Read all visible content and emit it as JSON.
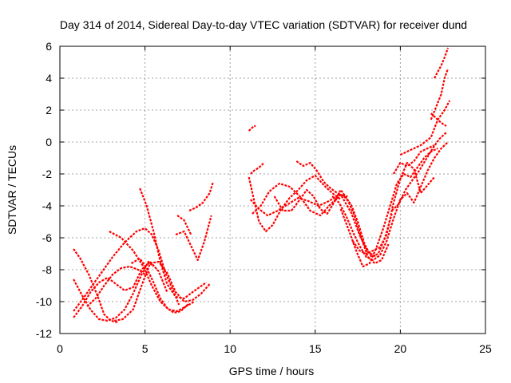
{
  "chart_data": {
    "type": "scatter",
    "title": "Day 314 of 2014, Sidereal Day-to-day VTEC variation (SDTVAR) for receiver dund",
    "xlabel": "GPS time / hours",
    "ylabel": "SDTVAR / TECUs",
    "xlim": [
      0,
      25
    ],
    "ylim": [
      -12,
      6
    ],
    "xticks": [
      "0",
      "5",
      "10",
      "15",
      "20",
      "25"
    ],
    "yticks": [
      "-12",
      "-10",
      "-8",
      "-6",
      "-4",
      "-2",
      "0",
      "2",
      "4",
      "6"
    ],
    "grid": true,
    "marker_color": "#ff0000",
    "marker": "plus",
    "series": [
      {
        "x": [
          0.8,
          1.2,
          1.7,
          2.2,
          2.6,
          3.0,
          3.4
        ],
        "y": [
          -6.7,
          -7.3,
          -8.3,
          -9.6,
          -10.8,
          -11.2,
          -11.3
        ]
      },
      {
        "x": [
          0.8,
          1.3,
          1.9,
          2.5,
          3.1,
          3.8,
          4.5,
          5.0,
          5.4,
          5.8,
          6.2,
          6.7,
          7.0
        ],
        "y": [
          -10.6,
          -9.9,
          -9.0,
          -8.1,
          -7.2,
          -6.3,
          -5.6,
          -5.4,
          -5.8,
          -6.8,
          -8.2,
          -9.4,
          -10.2
        ]
      },
      {
        "x": [
          0.8,
          1.3,
          1.8,
          2.3,
          2.8,
          3.3,
          3.8,
          4.3,
          4.8,
          5.3,
          5.8,
          6.3
        ],
        "y": [
          -11.0,
          -10.3,
          -9.4,
          -8.8,
          -8.5,
          -8.9,
          -9.3,
          -9.1,
          -8.0,
          -7.5,
          -8.1,
          -9.4
        ]
      },
      {
        "x": [
          0.8,
          1.3,
          1.8,
          2.3,
          2.8,
          3.3,
          3.8,
          4.3,
          4.8,
          5.2,
          5.5
        ],
        "y": [
          -8.6,
          -9.6,
          -10.5,
          -11.1,
          -11.2,
          -11.0,
          -10.5,
          -9.5,
          -8.3,
          -7.5,
          -7.8
        ]
      },
      {
        "x": [
          1.6,
          2.1,
          2.6,
          3.1,
          3.6,
          4.1,
          4.6,
          5.0
        ],
        "y": [
          -10.3,
          -9.8,
          -9.0,
          -8.3,
          -7.9,
          -7.8,
          -8.0,
          -8.3
        ]
      },
      {
        "x": [
          3.2,
          3.7,
          4.3,
          4.8,
          5.3,
          5.8,
          6.3,
          6.8,
          7.3,
          7.8,
          8.3,
          8.8
        ],
        "y": [
          -11.2,
          -11.1,
          -10.5,
          -9.0,
          -7.6,
          -7.5,
          -8.2,
          -9.4,
          -10.0,
          -9.9,
          -9.5,
          -8.9
        ]
      },
      {
        "x": [
          4.2,
          4.7,
          5.1,
          5.5,
          5.9,
          6.3,
          6.7,
          7.1,
          7.6
        ],
        "y": [
          -7.6,
          -7.3,
          -7.9,
          -8.8,
          -9.8,
          -10.4,
          -10.7,
          -10.6,
          -10.1
        ]
      },
      {
        "x": [
          2.9,
          3.6,
          4.3,
          4.9,
          5.4,
          5.9,
          6.4,
          6.9,
          7.4,
          7.9
        ],
        "y": [
          -5.6,
          -6.0,
          -6.8,
          -7.8,
          -9.0,
          -10.0,
          -10.5,
          -10.6,
          -10.3,
          -10.0
        ]
      },
      {
        "x": [
          4.7,
          5.1,
          5.5,
          5.9,
          6.3,
          6.8,
          7.3,
          7.8,
          8.2,
          8.6
        ],
        "y": [
          -2.9,
          -4.0,
          -5.6,
          -7.5,
          -8.9,
          -9.7,
          -9.8,
          -9.4,
          -9.1,
          -8.8
        ]
      },
      {
        "x": [
          6.8,
          7.3,
          7.7,
          8.1,
          8.5,
          8.9
        ],
        "y": [
          -5.8,
          -5.6,
          -6.5,
          -7.4,
          -6.2,
          -4.6
        ]
      },
      {
        "x": [
          6.9,
          7.3,
          7.7
        ],
        "y": [
          -4.6,
          -4.9,
          -5.8
        ]
      },
      {
        "x": [
          7.6,
          8.0,
          8.4,
          8.8,
          9.0
        ],
        "y": [
          -4.3,
          -4.1,
          -3.8,
          -3.2,
          -2.5
        ]
      },
      {
        "x": [
          11.1,
          11.2,
          11.3,
          11.4,
          11.5
        ],
        "y": [
          0.7,
          0.8,
          0.9,
          1.0,
          1.0
        ]
      },
      {
        "x": [
          11.2,
          11.4,
          11.7,
          12.0
        ],
        "y": [
          -2.0,
          -1.8,
          -1.6,
          -1.3
        ]
      },
      {
        "x": [
          11.1,
          11.4,
          11.7,
          12.1,
          12.5,
          13.0,
          13.5,
          14.0,
          14.5,
          15.0,
          15.5,
          16.0,
          16.5
        ],
        "y": [
          -2.2,
          -3.6,
          -5.0,
          -5.6,
          -5.2,
          -4.2,
          -3.5,
          -3.0,
          -2.4,
          -2.1,
          -2.7,
          -3.2,
          -3.6
        ]
      },
      {
        "x": [
          11.2,
          11.7,
          12.2,
          12.8,
          13.4,
          14.0,
          14.6,
          15.2,
          15.8,
          16.4,
          16.9
        ],
        "y": [
          -3.6,
          -4.2,
          -4.6,
          -4.3,
          -3.9,
          -3.5,
          -3.7,
          -4.0,
          -3.7,
          -3.3,
          -3.4
        ]
      },
      {
        "x": [
          11.3,
          11.8,
          12.3,
          12.9,
          13.5,
          14.1,
          14.7,
          15.3,
          15.9,
          16.5,
          17.1,
          17.6,
          18.1,
          18.6
        ],
        "y": [
          -4.5,
          -4.0,
          -3.1,
          -2.6,
          -2.8,
          -3.4,
          -4.3,
          -4.6,
          -3.9,
          -3.3,
          -4.4,
          -5.8,
          -6.9,
          -7.2
        ]
      },
      {
        "x": [
          12.6,
          13.1,
          13.6,
          14.1,
          14.5,
          14.9,
          15.3,
          15.7,
          16.1,
          16.5,
          16.9,
          17.3,
          17.7,
          18.1,
          18.5,
          18.9,
          19.3
        ],
        "y": [
          -3.4,
          -4.3,
          -4.3,
          -3.6,
          -3.0,
          -3.4,
          -4.2,
          -4.5,
          -3.8,
          -3.0,
          -3.6,
          -4.6,
          -6.0,
          -7.2,
          -7.6,
          -7.4,
          -6.4
        ]
      },
      {
        "x": [
          13.9,
          14.3,
          14.7,
          15.1,
          15.5,
          15.9,
          16.3,
          16.7,
          17.1,
          17.5,
          17.9,
          18.3,
          18.7,
          19.1,
          19.5
        ],
        "y": [
          -1.2,
          -1.5,
          -1.3,
          -1.8,
          -2.5,
          -2.9,
          -3.2,
          -3.4,
          -3.9,
          -5.0,
          -6.4,
          -7.2,
          -7.0,
          -6.0,
          -4.5
        ]
      },
      {
        "x": [
          16.0,
          16.4,
          16.8,
          17.2,
          17.6,
          18.0,
          18.4,
          18.8,
          19.2,
          19.6,
          20.0,
          20.4,
          20.8,
          21.2,
          21.6,
          22.0,
          22.4,
          22.8
        ],
        "y": [
          -3.4,
          -3.8,
          -4.6,
          -5.6,
          -6.5,
          -7.2,
          -7.4,
          -7.1,
          -6.2,
          -4.8,
          -3.6,
          -3.2,
          -3.8,
          -2.8,
          -1.8,
          -1.0,
          -0.4,
          0.0
        ]
      },
      {
        "x": [
          16.5,
          17.0,
          17.4,
          17.8,
          18.2,
          18.6,
          19.0,
          19.4,
          19.8,
          20.2,
          20.6,
          21.0,
          21.4,
          21.8,
          22.2
        ],
        "y": [
          -4.2,
          -5.6,
          -6.8,
          -7.8,
          -7.6,
          -6.6,
          -5.4,
          -4.0,
          -2.6,
          -2.0,
          -2.2,
          -1.6,
          -1.0,
          -0.6,
          -0.4
        ]
      },
      {
        "x": [
          17.2,
          17.6,
          18.0,
          18.4,
          18.8,
          19.2,
          19.6,
          20.0,
          20.4,
          20.8,
          21.2,
          21.6,
          22.0
        ],
        "y": [
          -6.2,
          -6.8,
          -7.0,
          -6.8,
          -6.6,
          -5.8,
          -3.8,
          -2.3,
          -1.3,
          -1.7,
          -3.2,
          -2.7,
          -2.2
        ]
      },
      {
        "x": [
          19.6,
          20.0,
          20.4,
          20.8,
          21.2,
          21.6,
          22.0
        ],
        "y": [
          -2.0,
          -1.3,
          -1.5,
          -1.2,
          -0.6,
          -0.4,
          -0.2
        ]
      },
      {
        "x": [
          19.5,
          19.9,
          20.3,
          20.7,
          21.1,
          21.5,
          21.9,
          22.3,
          22.7
        ],
        "y": [
          -4.3,
          -3.9,
          -3.0,
          -2.4,
          -1.8,
          -1.1,
          -0.4,
          0.2,
          0.6
        ]
      },
      {
        "x": [
          20.0,
          20.6,
          21.2,
          21.8,
          22.2,
          22.6,
          22.9
        ],
        "y": [
          -0.8,
          -0.5,
          -0.2,
          0.3,
          1.4,
          2.0,
          2.6
        ]
      },
      {
        "x": [
          21.8,
          22.1,
          22.4,
          22.7
        ],
        "y": [
          1.8,
          1.5,
          1.2,
          1.0
        ]
      },
      {
        "x": [
          21.8,
          22.1,
          22.4,
          22.6,
          22.8
        ],
        "y": [
          1.4,
          2.2,
          3.0,
          4.0,
          4.6
        ]
      },
      {
        "x": [
          22.0,
          22.2,
          22.4,
          22.6,
          22.8
        ],
        "y": [
          4.0,
          4.4,
          4.8,
          5.3,
          5.9
        ]
      }
    ]
  }
}
